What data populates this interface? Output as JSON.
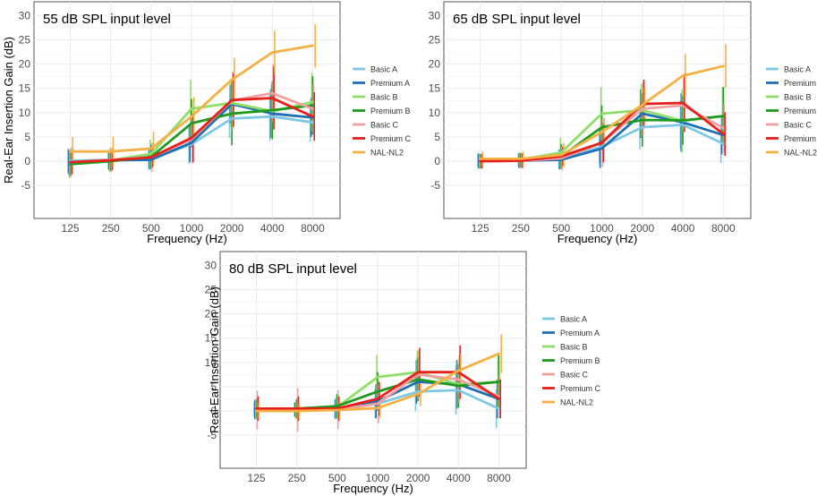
{
  "series_styles": [
    {
      "name": "Basic A",
      "color": "#7ec8e3"
    },
    {
      "name": "Premium A",
      "color": "#1f6fb4"
    },
    {
      "name": "Basic B",
      "color": "#8fde6a"
    },
    {
      "name": "Premium B",
      "color": "#1e9a1e"
    },
    {
      "name": "Basic C",
      "color": "#f4a0a0"
    },
    {
      "name": "Premium C",
      "color": "#e8201c"
    },
    {
      "name": "NAL-NL2",
      "color": "#f5b043"
    }
  ],
  "chart_data": [
    {
      "type": "line",
      "title": "55 dB SPL input level",
      "xlabel": "Frequency (Hz)",
      "ylabel": "Real-Ear Insertion Gain (dB)",
      "categories": [
        "125",
        "250",
        "500",
        "1000",
        "2000",
        "4000",
        "8000"
      ],
      "ylim": [
        -7,
        31
      ],
      "yticks": [
        -5,
        0,
        5,
        10,
        15,
        20,
        25,
        30
      ],
      "show_ylabel": true,
      "series": [
        {
          "name": "Basic A",
          "values": [
            0.1,
            0.3,
            0.5,
            3.5,
            8.8,
            9.2,
            8.0
          ]
        },
        {
          "name": "Premium A",
          "values": [
            -0.2,
            0.2,
            0.3,
            3.8,
            11.8,
            9.8,
            9.0
          ]
        },
        {
          "name": "Basic B",
          "values": [
            -0.5,
            0.2,
            1.5,
            10.8,
            12.0,
            10.3,
            12.2
          ]
        },
        {
          "name": "Premium B",
          "values": [
            -0.6,
            0.0,
            0.9,
            7.8,
            9.8,
            10.5,
            11.5
          ]
        },
        {
          "name": "Basic C",
          "values": [
            -0.2,
            0.3,
            0.8,
            4.5,
            12.5,
            14.0,
            10.8
          ]
        },
        {
          "name": "Premium C",
          "values": [
            -0.2,
            0.2,
            0.8,
            4.8,
            12.6,
            13.0,
            9.2
          ]
        },
        {
          "name": "NAL-NL2",
          "values": [
            2.0,
            2.0,
            2.6,
            9.2,
            16.8,
            22.4,
            23.8
          ]
        }
      ],
      "error": [
        [
          2.5,
          2.0,
          2.0,
          4.0,
          4.0,
          5.0,
          4.0
        ],
        [
          2.5,
          2.0,
          2.0,
          4.0,
          4.0,
          5.0,
          4.0
        ],
        [
          3.0,
          2.5,
          3.0,
          6.0,
          5.0,
          5.5,
          6.0
        ],
        [
          2.5,
          2.0,
          2.5,
          5.0,
          6.5,
          6.0,
          6.0
        ],
        [
          3.0,
          2.5,
          3.0,
          5.0,
          6.0,
          6.0,
          5.0
        ],
        [
          2.5,
          2.0,
          2.0,
          5.0,
          5.5,
          6.5,
          5.0
        ],
        [
          3.0,
          3.0,
          3.5,
          4.0,
          4.5,
          4.5,
          4.5
        ]
      ]
    },
    {
      "type": "line",
      "title": "65 dB SPL input level",
      "xlabel": "Frequency (Hz)",
      "ylabel": "Real-Ear Insertion Gain (dB)",
      "categories": [
        "125",
        "250",
        "500",
        "1000",
        "2000",
        "4000",
        "8000"
      ],
      "ylim": [
        -7,
        31
      ],
      "yticks": [
        -5,
        0,
        5,
        10,
        15,
        20,
        25,
        30
      ],
      "show_ylabel": false,
      "series": [
        {
          "name": "Basic A",
          "values": [
            0.2,
            0.2,
            0.5,
            3.0,
            7.0,
            7.5,
            3.6
          ]
        },
        {
          "name": "Premium A",
          "values": [
            0.0,
            0.1,
            0.3,
            2.6,
            9.8,
            8.0,
            5.4
          ]
        },
        {
          "name": "Basic B",
          "values": [
            0.1,
            0.3,
            1.8,
            9.8,
            10.5,
            8.3,
            9.3
          ]
        },
        {
          "name": "Premium B",
          "values": [
            0.0,
            0.2,
            1.0,
            7.0,
            8.5,
            8.4,
            9.3
          ]
        },
        {
          "name": "Basic C",
          "values": [
            0.0,
            0.1,
            0.6,
            3.8,
            10.8,
            11.5,
            6.8
          ]
        },
        {
          "name": "Premium C",
          "values": [
            0.0,
            0.1,
            1.0,
            3.8,
            11.8,
            12.0,
            5.6
          ]
        },
        {
          "name": "NAL-NL2",
          "values": [
            0.5,
            0.5,
            1.3,
            6.0,
            11.6,
            17.6,
            19.6
          ]
        }
      ],
      "error": [
        [
          1.5,
          1.5,
          2.0,
          3.5,
          4.5,
          5.0,
          4.0
        ],
        [
          1.5,
          1.5,
          2.0,
          4.0,
          5.0,
          6.0,
          4.0
        ],
        [
          1.5,
          1.5,
          3.0,
          5.5,
          5.5,
          6.5,
          6.0
        ],
        [
          1.5,
          1.5,
          2.5,
          4.5,
          5.5,
          5.0,
          6.0
        ],
        [
          1.5,
          1.5,
          2.5,
          5.0,
          5.5,
          5.5,
          5.0
        ],
        [
          1.5,
          1.5,
          2.0,
          4.0,
          5.0,
          6.0,
          4.5
        ],
        [
          1.5,
          1.5,
          2.5,
          3.0,
          3.5,
          4.5,
          4.5
        ]
      ]
    },
    {
      "type": "line",
      "title": "80 dB SPL input level",
      "xlabel": "Frequency (Hz)",
      "ylabel": "Real-Ear Insertion Gain (dB)",
      "categories": [
        "125",
        "250",
        "500",
        "1000",
        "2000",
        "4000",
        "8000"
      ],
      "ylim": [
        -7,
        31
      ],
      "yticks": [
        -5,
        0,
        5,
        10,
        15,
        20,
        25,
        30
      ],
      "show_ylabel": true,
      "series": [
        {
          "name": "Basic A",
          "values": [
            0.3,
            0.3,
            0.3,
            1.5,
            4.0,
            4.3,
            0.5
          ]
        },
        {
          "name": "Premium A",
          "values": [
            0.3,
            0.3,
            0.5,
            2.0,
            6.0,
            5.5,
            2.5
          ]
        },
        {
          "name": "Basic B",
          "values": [
            0.3,
            0.3,
            0.8,
            7.0,
            8.0,
            5.5,
            6.0
          ]
        },
        {
          "name": "Premium B",
          "values": [
            0.5,
            0.5,
            1.0,
            4.0,
            6.5,
            5.2,
            6.0
          ]
        },
        {
          "name": "Basic C",
          "values": [
            0.2,
            0.2,
            0.3,
            1.5,
            7.5,
            6.5,
            3.0
          ]
        },
        {
          "name": "Premium C",
          "values": [
            0.5,
            0.5,
            0.5,
            2.5,
            8.0,
            8.0,
            2.5
          ]
        },
        {
          "name": "NAL-NL2",
          "values": [
            0.0,
            0.0,
            0.2,
            0.6,
            3.5,
            8.3,
            11.8
          ]
        }
      ],
      "error": [
        [
          1.5,
          1.5,
          2.0,
          3.0,
          4.0,
          5.0,
          4.0
        ],
        [
          2.0,
          1.5,
          2.0,
          3.5,
          4.5,
          5.0,
          4.0
        ],
        [
          2.0,
          2.0,
          2.5,
          4.5,
          4.5,
          5.0,
          5.5
        ],
        [
          2.0,
          2.0,
          2.5,
          4.0,
          4.5,
          4.5,
          5.5
        ],
        [
          4.0,
          4.5,
          4.0,
          4.0,
          5.0,
          5.0,
          4.5
        ],
        [
          2.5,
          2.5,
          2.5,
          3.5,
          5.0,
          5.5,
          4.0
        ],
        [
          1.5,
          1.5,
          2.0,
          2.0,
          2.5,
          3.5,
          4.0
        ]
      ]
    }
  ]
}
